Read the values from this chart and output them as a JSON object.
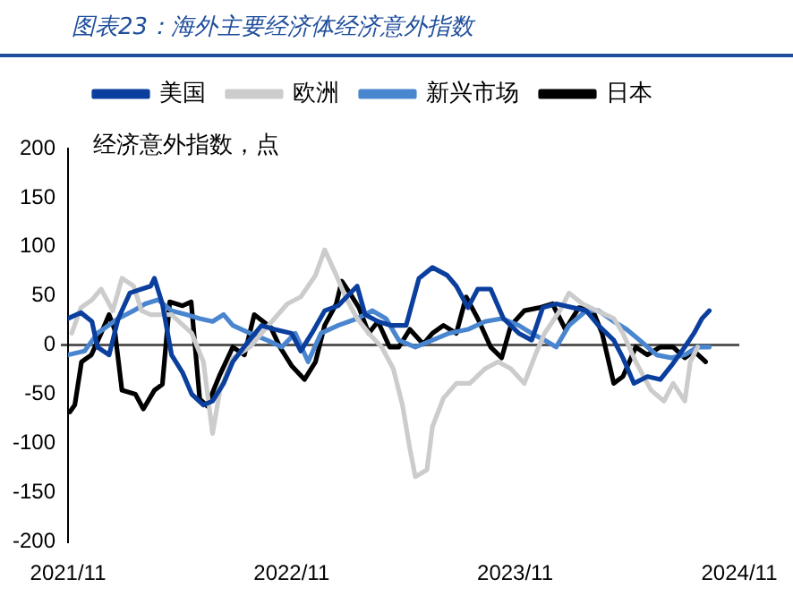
{
  "chart_data": {
    "type": "line",
    "title": "图表23：海外主要经济体经济意外指数",
    "ylabel": "经济意外指数，点",
    "legend": "top",
    "marker": "none",
    "line_style": "solid",
    "xlim": [
      "2021-11-01",
      "2024-11-01"
    ],
    "xticks": [
      {
        "value": "2021-11-01",
        "label": "2021/11"
      },
      {
        "value": "2022-11-01",
        "label": "2022/11"
      },
      {
        "value": "2023-11-01",
        "label": "2023/11"
      },
      {
        "value": "2024-11-01",
        "label": "2024/11"
      }
    ],
    "ylim": [
      -200,
      200
    ],
    "yticks": [
      -200,
      -150,
      -100,
      -50,
      0,
      50,
      100,
      150,
      200
    ],
    "series": [
      {
        "name": "美国",
        "color": "#0b3f9e",
        "x": [
          "2021-11-01",
          "2021-11-22",
          "2021-12-10",
          "2021-12-19",
          "2022-01-07",
          "2022-01-22",
          "2022-02-10",
          "2022-03-01",
          "2022-03-16",
          "2022-03-22",
          "2022-04-04",
          "2022-04-19",
          "2022-05-07",
          "2022-05-22",
          "2022-06-10",
          "2022-06-25",
          "2022-07-13",
          "2022-07-28",
          "2022-08-19",
          "2022-09-13",
          "2022-10-04",
          "2022-11-01",
          "2022-11-16",
          "2022-12-04",
          "2022-12-25",
          "2023-01-16",
          "2023-02-16",
          "2023-03-01",
          "2023-03-22",
          "2023-04-13",
          "2023-05-07",
          "2023-05-28",
          "2023-06-19",
          "2023-07-13",
          "2023-07-28",
          "2023-08-16",
          "2023-09-01",
          "2023-09-22",
          "2023-10-13",
          "2023-11-07",
          "2023-11-28",
          "2023-12-16",
          "2024-01-07",
          "2024-02-04",
          "2024-02-25",
          "2024-03-16",
          "2024-04-10",
          "2024-04-25",
          "2024-05-13",
          "2024-06-04",
          "2024-06-25",
          "2024-07-13",
          "2024-08-04",
          "2024-08-19",
          "2024-09-01",
          "2024-09-13"
        ],
        "values": [
          27,
          33,
          24,
          -2,
          -10,
          27,
          53,
          57,
          60,
          68,
          42,
          -10,
          -28,
          -50,
          -61,
          -57,
          -39,
          -17,
          1,
          20,
          16,
          12,
          -6,
          12,
          35,
          40,
          60,
          31,
          24,
          20,
          20,
          68,
          79,
          71,
          60,
          38,
          57,
          57,
          27,
          12,
          5,
          38,
          42,
          38,
          35,
          20,
          5,
          -13,
          -39,
          -32,
          -35,
          -21,
          -2,
          12,
          27,
          35
        ]
      },
      {
        "name": "欧洲",
        "color": "#cccccc",
        "x": [
          "2021-11-07",
          "2021-11-22",
          "2021-12-10",
          "2021-12-25",
          "2022-01-13",
          "2022-01-28",
          "2022-02-16",
          "2022-03-01",
          "2022-03-16",
          "2022-04-19",
          "2022-05-22",
          "2022-06-10",
          "2022-06-25",
          "2022-07-07",
          "2022-07-28",
          "2022-08-25",
          "2022-09-13",
          "2022-10-04",
          "2022-10-25",
          "2022-11-16",
          "2022-12-10",
          "2022-12-25",
          "2023-01-13",
          "2023-01-28",
          "2023-02-16",
          "2023-03-07",
          "2023-03-28",
          "2023-04-16",
          "2023-05-01",
          "2023-05-13",
          "2023-05-22",
          "2023-06-10",
          "2023-06-19",
          "2023-07-07",
          "2023-07-28",
          "2023-08-19",
          "2023-09-13",
          "2023-10-04",
          "2023-10-25",
          "2023-11-16",
          "2023-12-04",
          "2023-12-19",
          "2024-01-13",
          "2024-01-28",
          "2024-02-19",
          "2024-03-13",
          "2024-04-10",
          "2024-04-25",
          "2024-05-16",
          "2024-06-10",
          "2024-07-01",
          "2024-07-16",
          "2024-08-04",
          "2024-08-13",
          "2024-08-25"
        ],
        "values": [
          12,
          38,
          46,
          57,
          35,
          68,
          60,
          35,
          31,
          31,
          12,
          -17,
          -90,
          -46,
          -13,
          -2,
          12,
          27,
          42,
          49,
          71,
          97,
          71,
          49,
          27,
          12,
          -2,
          -24,
          -61,
          -105,
          -134,
          -127,
          -83,
          -54,
          -39,
          -39,
          -24,
          -17,
          -24,
          -39,
          -10,
          12,
          35,
          53,
          42,
          35,
          27,
          12,
          -17,
          -46,
          -57,
          -39,
          -57,
          -17,
          -2
        ]
      },
      {
        "name": "新兴市场",
        "color": "#4a86cf",
        "x": [
          "2021-11-01",
          "2021-11-28",
          "2021-12-19",
          "2022-01-22",
          "2022-02-16",
          "2022-03-07",
          "2022-03-28",
          "2022-04-19",
          "2022-05-13",
          "2022-06-04",
          "2022-06-25",
          "2022-07-13",
          "2022-07-28",
          "2022-08-25",
          "2022-09-22",
          "2022-10-16",
          "2022-11-07",
          "2022-11-28",
          "2022-12-19",
          "2023-01-16",
          "2023-02-16",
          "2023-03-13",
          "2023-04-04",
          "2023-04-25",
          "2023-05-22",
          "2023-06-19",
          "2023-07-16",
          "2023-08-16",
          "2023-09-13",
          "2023-10-10",
          "2023-11-07",
          "2023-11-28",
          "2023-12-19",
          "2024-01-07",
          "2024-01-28",
          "2024-02-25",
          "2024-03-16",
          "2024-04-10",
          "2024-05-01",
          "2024-05-22",
          "2024-06-19",
          "2024-07-13",
          "2024-08-04",
          "2024-08-25",
          "2024-09-13"
        ],
        "values": [
          -10,
          -6,
          12,
          27,
          35,
          42,
          46,
          35,
          31,
          27,
          24,
          31,
          20,
          12,
          5,
          -2,
          12,
          -17,
          12,
          20,
          27,
          35,
          27,
          5,
          -2,
          5,
          12,
          16,
          24,
          27,
          20,
          12,
          5,
          -2,
          20,
          35,
          35,
          24,
          16,
          5,
          -10,
          -13,
          -10,
          -2,
          -2
        ]
      },
      {
        "name": "日本",
        "color": "#000000",
        "x": [
          "2021-11-04",
          "2021-11-12",
          "2021-11-23",
          "2021-12-09",
          "2021-12-25",
          "2022-01-07",
          "2022-01-16",
          "2022-01-28",
          "2022-02-19",
          "2022-03-04",
          "2022-03-22",
          "2022-04-04",
          "2022-04-16",
          "2022-05-07",
          "2022-05-21",
          "2022-06-04",
          "2022-06-16",
          "2022-07-07",
          "2022-07-28",
          "2022-08-16",
          "2022-09-01",
          "2022-09-28",
          "2022-10-13",
          "2022-11-01",
          "2022-11-22",
          "2022-12-10",
          "2022-12-25",
          "2023-01-13",
          "2023-01-22",
          "2023-02-04",
          "2023-02-19",
          "2023-03-07",
          "2023-03-22",
          "2023-04-10",
          "2023-04-25",
          "2023-05-13",
          "2023-06-04",
          "2023-06-19",
          "2023-07-07",
          "2023-07-28",
          "2023-08-13",
          "2023-09-01",
          "2023-09-22",
          "2023-10-10",
          "2023-10-25",
          "2023-11-16",
          "2023-12-10",
          "2024-01-01",
          "2024-01-22",
          "2024-02-13",
          "2024-03-07",
          "2024-03-22",
          "2024-04-10",
          "2024-04-25",
          "2024-05-16",
          "2024-06-04",
          "2024-06-25",
          "2024-07-16",
          "2024-08-04",
          "2024-08-19",
          "2024-09-07"
        ],
        "values": [
          -68,
          -61,
          -17,
          -10,
          12,
          31,
          16,
          -46,
          -50,
          -65,
          -46,
          -40,
          44,
          40,
          44,
          -55,
          -62,
          -30,
          -2,
          -10,
          31,
          18,
          -2,
          -21,
          -35,
          -17,
          20,
          42,
          65,
          53,
          38,
          12,
          24,
          -2,
          -2,
          16,
          1,
          12,
          20,
          12,
          49,
          27,
          -2,
          -13,
          20,
          35,
          38,
          42,
          16,
          38,
          35,
          12,
          -39,
          -32,
          -2,
          -10,
          -2,
          -2,
          -13,
          -6,
          -17
        ]
      }
    ]
  }
}
